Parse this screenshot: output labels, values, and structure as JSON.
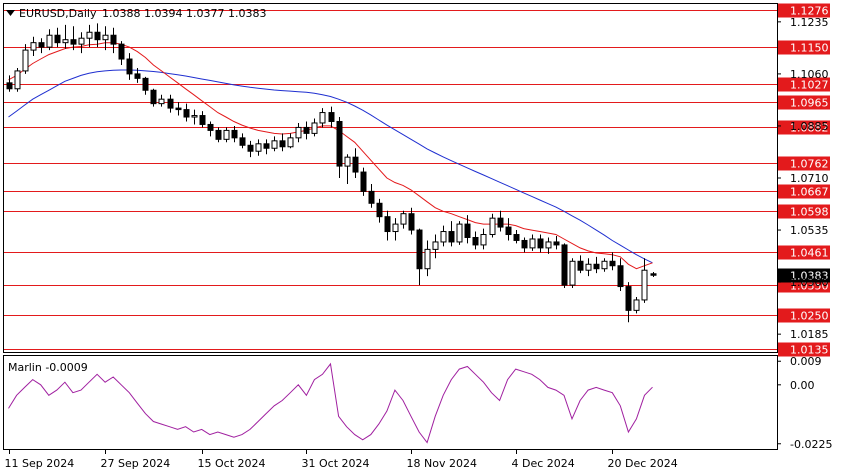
{
  "header": {
    "symbol_timeframe": "EURUSD,Daily",
    "ohlc": "1.0388 1.0394 1.0377 1.0383"
  },
  "indicator": {
    "label": "Marlin -0.0009",
    "axis_ticks": [
      "0.009",
      "0.00",
      "-0.0225"
    ]
  },
  "colors": {
    "level_line": "#e31a1c",
    "ma_fast": "#e31a1c",
    "ma_slow": "#1f2fd0",
    "oscillator": "#a020a0",
    "current_price_tag": "#000000"
  },
  "chart_data": [
    {
      "type": "candlestick",
      "title": "EURUSD,Daily",
      "ylim": [
        1.0125,
        1.1295
      ],
      "x_tick_labels": [
        "11 Sep 2024",
        "27 Sep 2024",
        "15 Oct 2024",
        "31 Oct 2024",
        "18 Nov 2024",
        "4 Dec 2024",
        "20 Dec 2024"
      ],
      "y_tick_labels": [
        "1.1235",
        "1.1060",
        "1.0885",
        "1.0710",
        "1.0535",
        "1.0360",
        "1.0185"
      ],
      "horizontal_levels": [
        "1.1276",
        "1.1150",
        "1.1027",
        "1.0965",
        "1.0882",
        "1.0762",
        "1.0667",
        "1.0598",
        "1.0461",
        "1.0350",
        "1.0250",
        "1.0135"
      ],
      "current_price": "1.0383",
      "ohlc": [
        [
          1.103,
          1.1055,
          1.1,
          1.101
        ],
        [
          1.101,
          1.108,
          1.1,
          1.107
        ],
        [
          1.107,
          1.116,
          1.106,
          1.114
        ],
        [
          1.114,
          1.1185,
          1.112,
          1.1165
        ],
        [
          1.1165,
          1.118,
          1.113,
          1.115
        ],
        [
          1.115,
          1.121,
          1.114,
          1.119
        ],
        [
          1.119,
          1.1215,
          1.115,
          1.1165
        ],
        [
          1.1165,
          1.1225,
          1.1145,
          1.1175
        ],
        [
          1.1175,
          1.122,
          1.114,
          1.116
        ],
        [
          1.116,
          1.12,
          1.113,
          1.118
        ],
        [
          1.118,
          1.1225,
          1.115,
          1.12
        ],
        [
          1.12,
          1.123,
          1.115,
          1.1175
        ],
        [
          1.1175,
          1.122,
          1.114,
          1.119
        ],
        [
          1.119,
          1.1215,
          1.113,
          1.116
        ],
        [
          1.116,
          1.117,
          1.109,
          1.111
        ],
        [
          1.111,
          1.113,
          1.104,
          1.106
        ],
        [
          1.106,
          1.108,
          1.103,
          1.1045
        ],
        [
          1.1045,
          1.105,
          1.099,
          1.1005
        ],
        [
          1.1005,
          1.101,
          1.095,
          1.096
        ],
        [
          1.096,
          1.099,
          1.095,
          1.0975
        ],
        [
          1.0975,
          1.099,
          1.093,
          1.0945
        ],
        [
          1.0945,
          1.0965,
          1.092,
          1.094
        ],
        [
          1.094,
          1.096,
          1.09,
          1.0915
        ],
        [
          1.0915,
          1.094,
          1.089,
          1.092
        ],
        [
          1.092,
          1.0935,
          1.088,
          1.089
        ],
        [
          1.089,
          1.09,
          1.085,
          1.087
        ],
        [
          1.087,
          1.088,
          1.083,
          1.084
        ],
        [
          1.084,
          1.088,
          1.083,
          1.087
        ],
        [
          1.087,
          1.0885,
          1.083,
          1.0845
        ],
        [
          1.0845,
          1.086,
          1.081,
          1.082
        ],
        [
          1.082,
          1.0835,
          1.078,
          1.08
        ],
        [
          1.08,
          1.084,
          1.0785,
          1.0825
        ],
        [
          1.0825,
          1.084,
          1.079,
          1.081
        ],
        [
          1.081,
          1.085,
          1.08,
          1.0835
        ],
        [
          1.0835,
          1.086,
          1.08,
          1.0815
        ],
        [
          1.0815,
          1.086,
          1.081,
          1.0845
        ],
        [
          1.0845,
          1.0895,
          1.083,
          1.088
        ],
        [
          1.088,
          1.09,
          1.084,
          1.086
        ],
        [
          1.086,
          1.091,
          1.085,
          1.0895
        ],
        [
          1.0895,
          1.0945,
          1.088,
          1.093
        ],
        [
          1.093,
          1.095,
          1.088,
          1.09
        ],
        [
          1.09,
          1.0915,
          1.071,
          1.075
        ],
        [
          1.075,
          1.079,
          1.069,
          1.078
        ],
        [
          1.078,
          1.081,
          1.071,
          1.073
        ],
        [
          1.073,
          1.0745,
          1.065,
          1.0665
        ],
        [
          1.0665,
          1.069,
          1.061,
          1.0625
        ],
        [
          1.0625,
          1.064,
          1.056,
          1.058
        ],
        [
          1.058,
          1.06,
          1.05,
          1.053
        ],
        [
          1.053,
          1.0575,
          1.05,
          1.0555
        ],
        [
          1.0555,
          1.06,
          1.054,
          1.059
        ],
        [
          1.059,
          1.061,
          1.052,
          1.0535
        ],
        [
          1.0535,
          1.054,
          1.035,
          1.0405
        ],
        [
          1.0405,
          1.05,
          1.038,
          1.047
        ],
        [
          1.047,
          1.052,
          1.044,
          1.0495
        ],
        [
          1.0495,
          1.055,
          1.048,
          1.053
        ],
        [
          1.053,
          1.0565,
          1.048,
          1.0495
        ],
        [
          1.0495,
          1.0565,
          1.0485,
          1.0555
        ],
        [
          1.0555,
          1.0585,
          1.049,
          1.051
        ],
        [
          1.051,
          1.053,
          1.047,
          1.0485
        ],
        [
          1.0485,
          1.054,
          1.047,
          1.052
        ],
        [
          1.052,
          1.059,
          1.051,
          1.0575
        ],
        [
          1.0575,
          1.06,
          1.053,
          1.0545
        ],
        [
          1.0545,
          1.0575,
          1.05,
          1.052
        ],
        [
          1.052,
          1.0535,
          1.049,
          1.05
        ],
        [
          1.05,
          1.051,
          1.046,
          1.0475
        ],
        [
          1.0475,
          1.052,
          1.0465,
          1.0505
        ],
        [
          1.0505,
          1.052,
          1.046,
          1.0475
        ],
        [
          1.0475,
          1.051,
          1.0455,
          1.0495
        ],
        [
          1.0495,
          1.0515,
          1.047,
          1.0485
        ],
        [
          1.0485,
          1.049,
          1.034,
          1.035
        ],
        [
          1.035,
          1.044,
          1.034,
          1.043
        ],
        [
          1.043,
          1.045,
          1.039,
          1.04
        ],
        [
          1.04,
          1.044,
          1.038,
          1.042
        ],
        [
          1.042,
          1.0445,
          1.039,
          1.0405
        ],
        [
          1.0405,
          1.044,
          1.0395,
          1.043
        ],
        [
          1.043,
          1.046,
          1.04,
          1.0415
        ],
        [
          1.0415,
          1.044,
          1.033,
          1.0345
        ],
        [
          1.0345,
          1.036,
          1.0225,
          1.0265
        ],
        [
          1.0265,
          1.031,
          1.0255,
          1.03
        ],
        [
          1.03,
          1.044,
          1.029,
          1.04
        ],
        [
          1.0388,
          1.0394,
          1.0377,
          1.0383
        ]
      ],
      "ma_fast": [
        1.104,
        1.1055,
        1.1075,
        1.1095,
        1.111,
        1.1125,
        1.1135,
        1.1145,
        1.115,
        1.1152,
        1.1158,
        1.116,
        1.1165,
        1.1165,
        1.116,
        1.115,
        1.1135,
        1.1115,
        1.109,
        1.107,
        1.105,
        1.103,
        1.101,
        1.099,
        1.097,
        1.095,
        1.093,
        1.0915,
        1.09,
        1.0888,
        1.0878,
        1.087,
        1.0865,
        1.086,
        1.0858,
        1.086,
        1.0865,
        1.087,
        1.0878,
        1.0885,
        1.0885,
        1.087,
        1.085,
        1.083,
        1.08,
        1.077,
        1.074,
        1.071,
        1.0695,
        1.0685,
        1.067,
        1.065,
        1.063,
        1.061,
        1.0598,
        1.059,
        1.058,
        1.057,
        1.056,
        1.0555,
        1.0555,
        1.0555,
        1.0555,
        1.055,
        1.054,
        1.0535,
        1.053,
        1.0525,
        1.052,
        1.0505,
        1.049,
        1.0475,
        1.0465,
        1.0458,
        1.0455,
        1.0452,
        1.0445,
        1.042,
        1.0405,
        1.0415,
        1.0425
      ],
      "ma_slow": [
        1.0915,
        1.0935,
        1.0955,
        1.0975,
        1.099,
        1.1005,
        1.102,
        1.1035,
        1.1045,
        1.1055,
        1.1062,
        1.1067,
        1.107,
        1.1072,
        1.1073,
        1.1073,
        1.1072,
        1.107,
        1.1068,
        1.1065,
        1.1061,
        1.1057,
        1.1053,
        1.1048,
        1.1043,
        1.1038,
        1.1033,
        1.1028,
        1.1023,
        1.1019,
        1.1015,
        1.1012,
        1.1009,
        1.1006,
        1.1004,
        1.1002,
        1.1,
        1.0998,
        1.0995,
        1.099,
        1.0984,
        1.0975,
        1.0965,
        1.0952,
        1.0938,
        1.0922,
        1.0905,
        1.0888,
        1.0872,
        1.0856,
        1.084,
        1.0824,
        1.0808,
        1.0794,
        1.0781,
        1.0768,
        1.0756,
        1.0744,
        1.0732,
        1.072,
        1.0708,
        1.0696,
        1.0684,
        1.0672,
        1.066,
        1.0648,
        1.0636,
        1.0624,
        1.0612,
        1.0598,
        1.0583,
        1.0568,
        1.0552,
        1.0535,
        1.0518,
        1.05,
        1.0484,
        1.0468,
        1.0452,
        1.0438,
        1.0425
      ]
    },
    {
      "type": "line",
      "title": "Marlin -0.0009",
      "ylim": [
        -0.0245,
        0.011
      ],
      "series": [
        {
          "values": [
            -0.009,
            -0.004,
            -0.001,
            0.002,
            0.0,
            -0.004,
            -0.002,
            0.001,
            -0.003,
            -0.002,
            0.001,
            0.004,
            0.001,
            0.003,
            0.0,
            -0.003,
            -0.007,
            -0.011,
            -0.014,
            -0.015,
            -0.016,
            -0.017,
            -0.016,
            -0.018,
            -0.017,
            -0.019,
            -0.018,
            -0.019,
            -0.02,
            -0.019,
            -0.017,
            -0.014,
            -0.011,
            -0.008,
            -0.006,
            -0.003,
            0.0,
            -0.004,
            0.002,
            0.004,
            0.008,
            -0.012,
            -0.016,
            -0.019,
            -0.021,
            -0.019,
            -0.015,
            -0.01,
            -0.002,
            -0.006,
            -0.012,
            -0.018,
            -0.022,
            -0.012,
            -0.004,
            0.002,
            0.006,
            0.007,
            0.004,
            0.001,
            -0.003,
            -0.006,
            0.002,
            0.006,
            0.005,
            0.004,
            0.002,
            -0.001,
            -0.002,
            -0.004,
            -0.013,
            -0.006,
            -0.002,
            -0.001,
            -0.002,
            -0.003,
            -0.008,
            -0.018,
            -0.013,
            -0.004,
            -0.0009
          ]
        }
      ]
    }
  ]
}
